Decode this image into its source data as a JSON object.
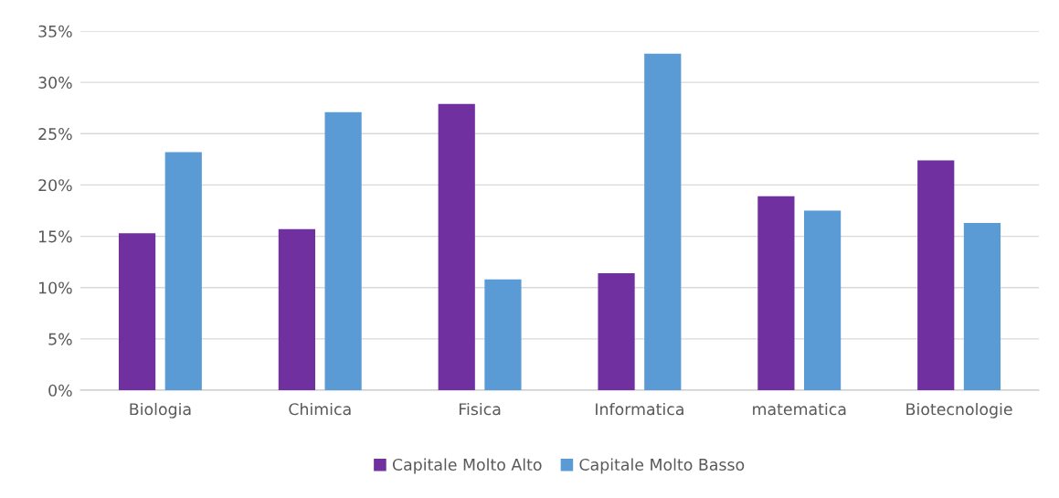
{
  "chart_data": {
    "type": "bar",
    "categories": [
      "Biologia",
      "Chimica",
      "Fisica",
      "Informatica",
      "matematica",
      "Biotecnologie"
    ],
    "series": [
      {
        "name": "Capitale Molto Alto",
        "color": "#7030a0",
        "values": [
          15.3,
          15.7,
          27.9,
          11.4,
          18.9,
          22.4
        ]
      },
      {
        "name": "Capitale Molto Basso",
        "color": "#5b9bd5",
        "values": [
          23.2,
          27.1,
          10.8,
          32.8,
          17.5,
          16.3
        ]
      }
    ],
    "ylim": [
      0,
      35
    ],
    "yticks": [
      {
        "value": 0,
        "label": "0%"
      },
      {
        "value": 5,
        "label": "5%"
      },
      {
        "value": 10,
        "label": "10%"
      },
      {
        "value": 15,
        "label": "15%"
      },
      {
        "value": 20,
        "label": "20%"
      },
      {
        "value": 25,
        "label": "25%"
      },
      {
        "value": 30,
        "label": "30%"
      },
      {
        "value": 35,
        "label": "35%"
      }
    ],
    "grid": "y",
    "legend": "bottom"
  }
}
